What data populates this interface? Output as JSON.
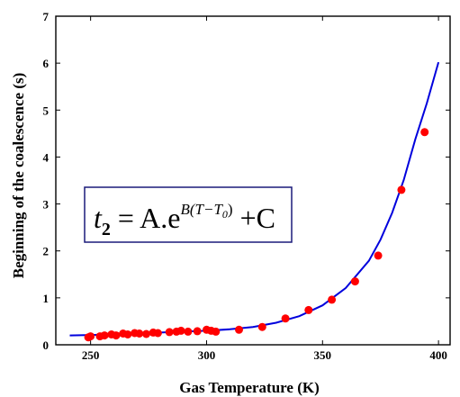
{
  "chart_data": {
    "type": "scatter",
    "title": "",
    "xlabel": "Gas Temperature (K)",
    "ylabel": "Beginning of the coalescence (s)",
    "xlim": [
      235,
      405
    ],
    "ylim": [
      0,
      7
    ],
    "xticks": [
      "250",
      "300",
      "350",
      "400"
    ],
    "yticks": [
      "0",
      "1",
      "2",
      "3",
      "4",
      "5",
      "6",
      "7"
    ],
    "grid": false,
    "annotation": {
      "lhs": "t",
      "lhs_sub": "2",
      "eq": " = A.e",
      "exp_prefix": "B(T−T",
      "exp_sub": "0",
      "exp_suffix": ")",
      "tail": " +C"
    },
    "series": [
      {
        "kind": "points",
        "color": "#ff0000",
        "x": [
          249,
          250,
          254,
          256,
          259,
          261,
          264,
          266,
          269,
          271,
          274,
          277,
          279,
          284,
          287,
          289,
          292,
          296,
          300,
          302,
          304,
          314,
          324,
          334,
          344,
          354,
          364,
          374,
          384,
          394
        ],
        "y": [
          0.16,
          0.18,
          0.18,
          0.2,
          0.22,
          0.2,
          0.24,
          0.22,
          0.25,
          0.24,
          0.23,
          0.26,
          0.25,
          0.27,
          0.28,
          0.3,
          0.28,
          0.29,
          0.32,
          0.3,
          0.28,
          0.32,
          0.38,
          0.56,
          0.74,
          0.96,
          1.35,
          1.9,
          3.3,
          4.53
        ]
      },
      {
        "kind": "fit",
        "color": "#0000dd",
        "x": [
          241,
          250,
          260,
          270,
          280,
          290,
          300,
          310,
          320,
          330,
          340,
          350,
          360,
          370,
          375,
          380,
          385,
          390,
          395,
          400
        ],
        "y": [
          0.2,
          0.21,
          0.22,
          0.24,
          0.26,
          0.28,
          0.3,
          0.33,
          0.38,
          0.47,
          0.61,
          0.84,
          1.21,
          1.79,
          2.24,
          2.81,
          3.51,
          4.38,
          5.15,
          6.02
        ]
      }
    ]
  }
}
